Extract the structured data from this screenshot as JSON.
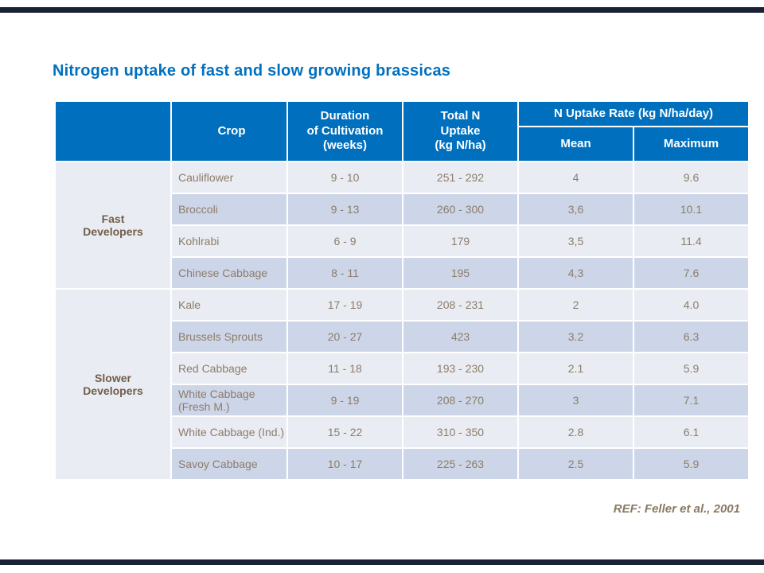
{
  "slide": {
    "title": "Nitrogen uptake of fast and slow growing brassicas",
    "reference": "REF: Feller et al., 2001"
  },
  "colors": {
    "title_text": "#0070C0",
    "header_bg": "#0070BE",
    "header_text": "#FFFFFF",
    "row_light_bg": "#EAECF3",
    "row_dark_bg": "#CDD6E8",
    "data_text": "#8C7C6A",
    "group_label_text": "#6F5E49",
    "ref_text": "#8A7963",
    "edge_rule": "#1B2135",
    "slide_bg": "#FFFFFF"
  },
  "table": {
    "headers": {
      "group": "",
      "crop": "Crop",
      "duration": "Duration\nof Cultivation\n(weeks)",
      "total_n": "Total N\nUptake\n(kg N/ha)",
      "uptake_rate": "N Uptake Rate (kg N/ha/day)",
      "mean": "Mean",
      "maximum": "Maximum"
    },
    "groups": [
      {
        "label": "Fast\nDevelopers",
        "rows": [
          {
            "crop": "Cauliflower",
            "duration": "9 - 10",
            "total_n": "251 - 292",
            "mean": "4",
            "maximum": "9.6"
          },
          {
            "crop": "Broccoli",
            "duration": "9 - 13",
            "total_n": "260 - 300",
            "mean": "3,6",
            "maximum": "10.1"
          },
          {
            "crop": "Kohlrabi",
            "duration": "6 - 9",
            "total_n": "179",
            "mean": "3,5",
            "maximum": "11.4"
          },
          {
            "crop": "Chinese Cabbage",
            "duration": "8 - 11",
            "total_n": "195",
            "mean": "4,3",
            "maximum": "7.6"
          }
        ]
      },
      {
        "label": "Slower\nDevelopers",
        "rows": [
          {
            "crop": "Kale",
            "duration": "17 - 19",
            "total_n": "208 - 231",
            "mean": "2",
            "maximum": "4.0"
          },
          {
            "crop": "Brussels Sprouts",
            "duration": "20 - 27",
            "total_n": "423",
            "mean": "3.2",
            "maximum": "6.3"
          },
          {
            "crop": "Red Cabbage",
            "duration": "11 - 18",
            "total_n": "193 - 230",
            "mean": "2.1",
            "maximum": "5.9"
          },
          {
            "crop": "White Cabbage (Fresh M.)",
            "duration": "9 - 19",
            "total_n": "208 - 270",
            "mean": "3",
            "maximum": "7.1"
          },
          {
            "crop": "White Cabbage (Ind.)",
            "duration": "15 - 22",
            "total_n": "310 - 350",
            "mean": "2.8",
            "maximum": "6.1"
          },
          {
            "crop": "Savoy Cabbage",
            "duration": "10 - 17",
            "total_n": "225 - 263",
            "mean": "2.5",
            "maximum": "5.9"
          }
        ]
      }
    ]
  }
}
